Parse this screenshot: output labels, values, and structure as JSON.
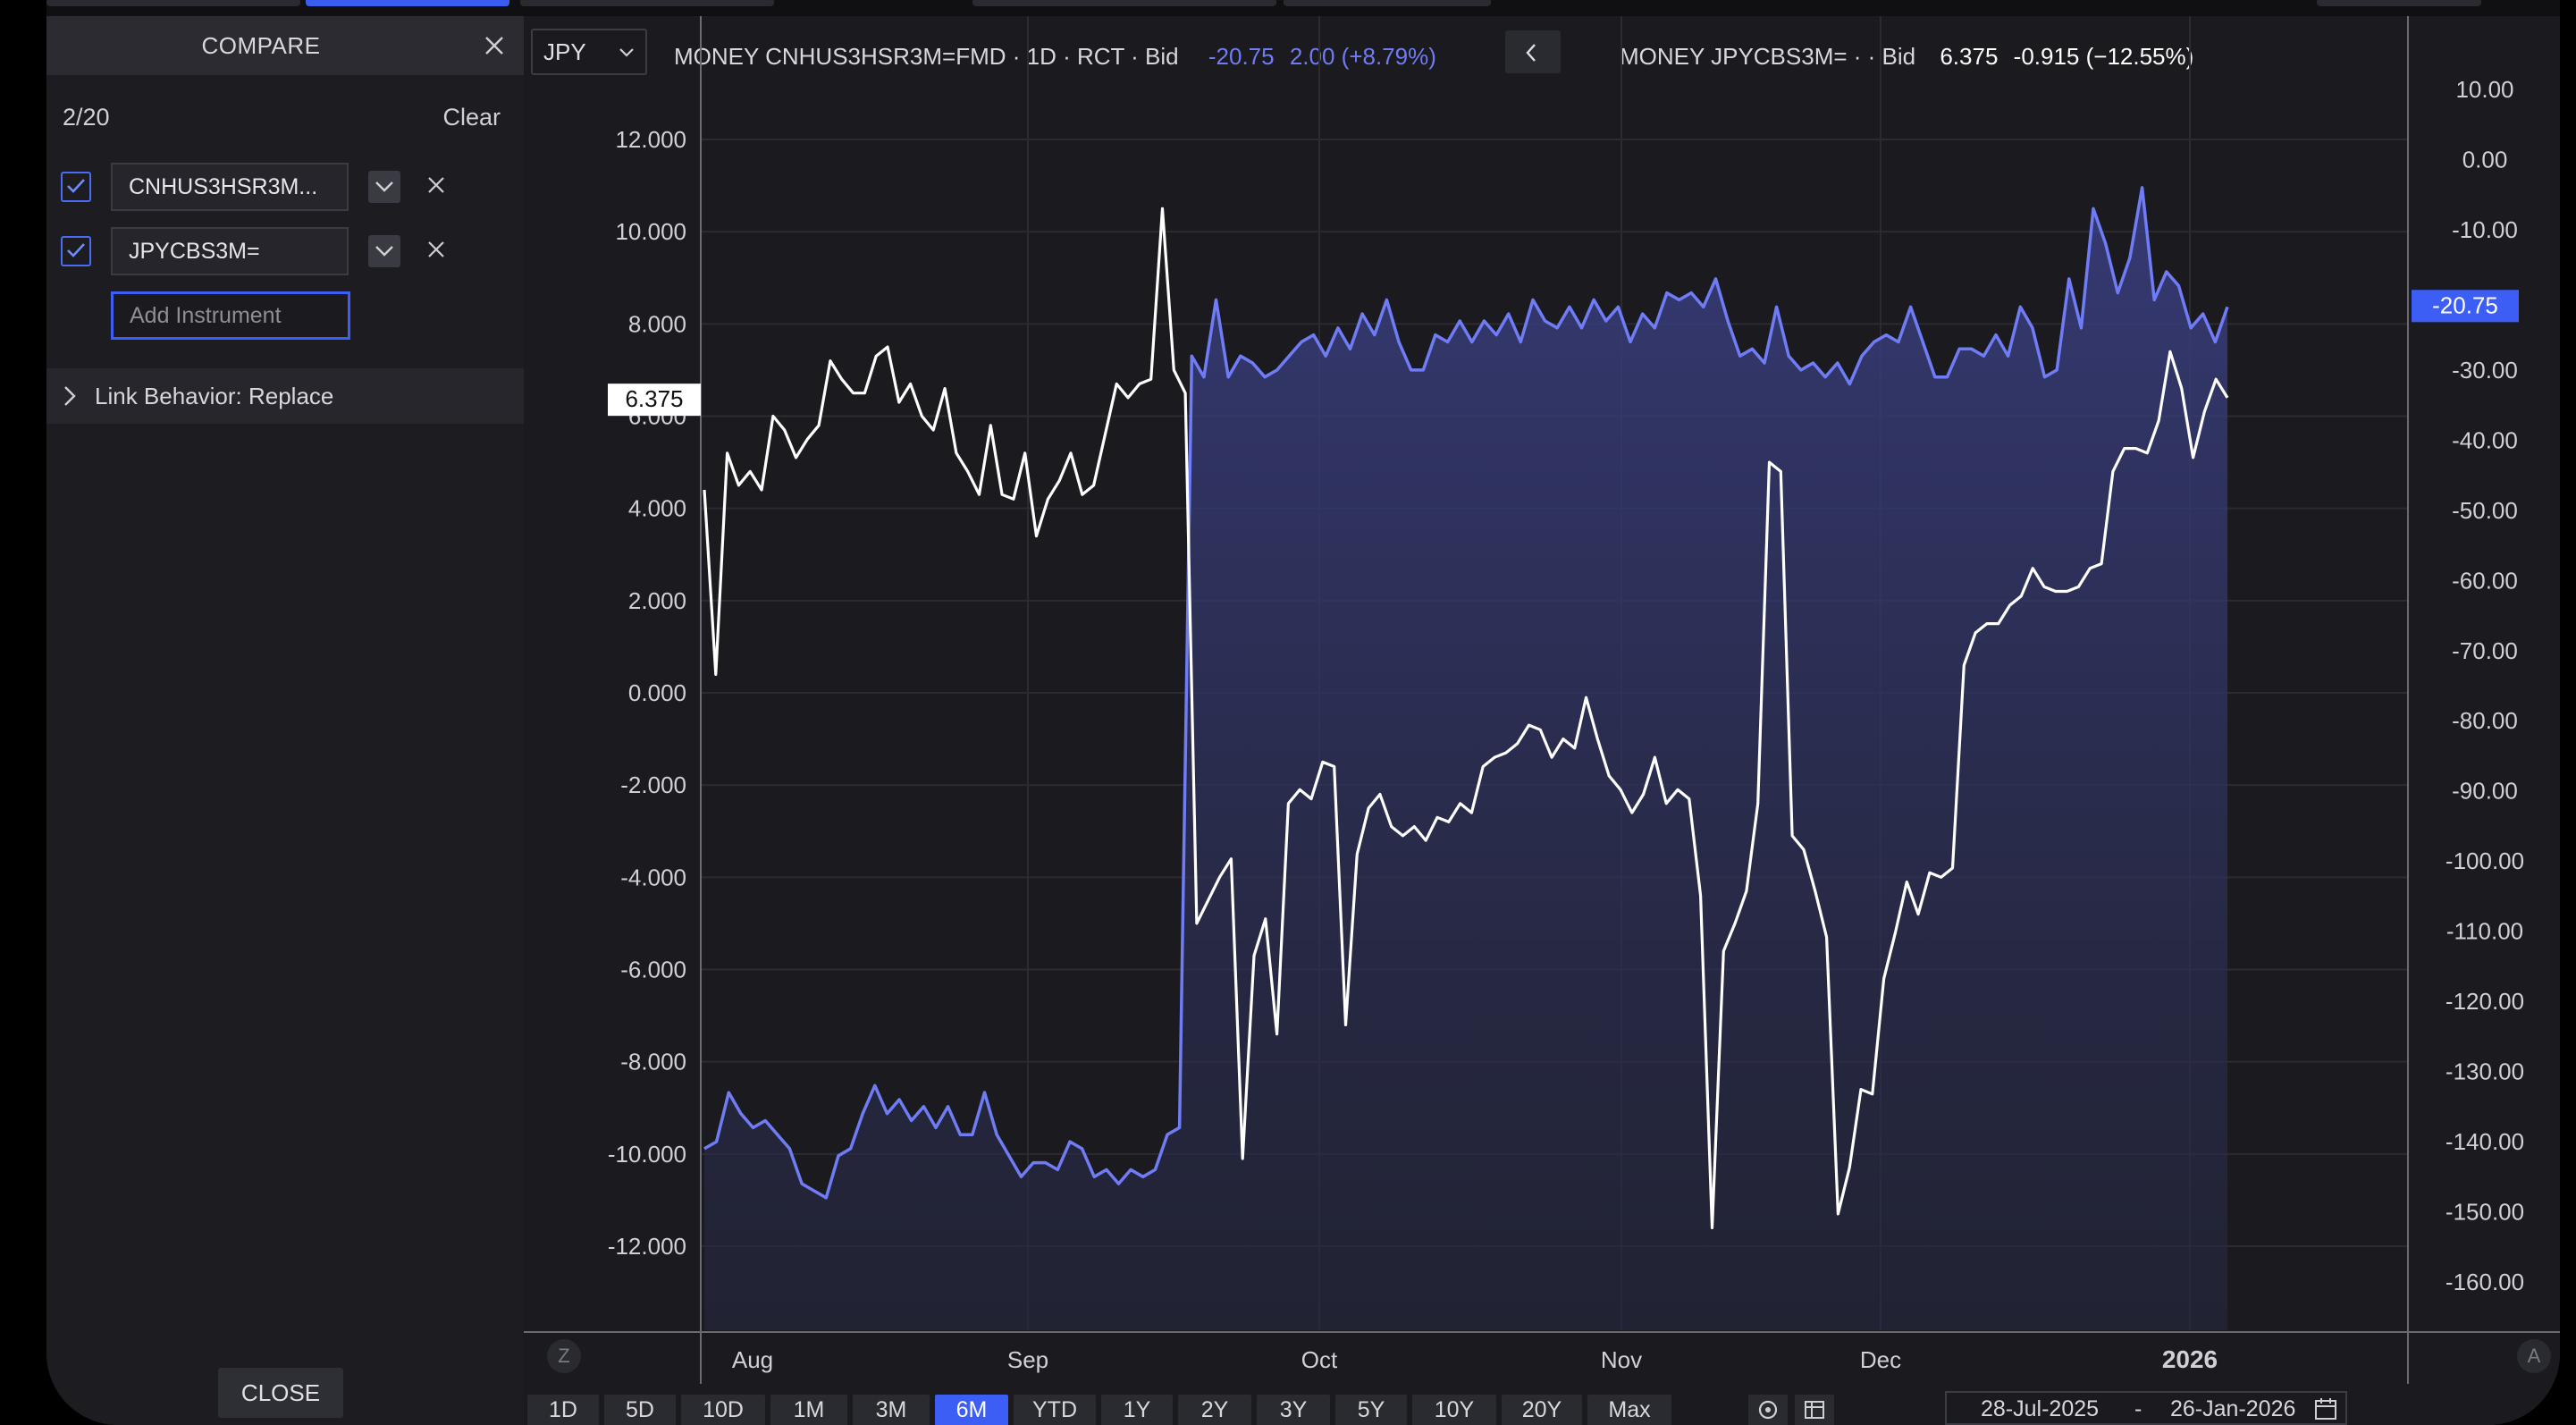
{
  "compare_panel": {
    "title": "COMPARE",
    "count": "2/20",
    "clear_label": "Clear",
    "instruments": [
      {
        "label": "CNHUS3HSR3M...",
        "checked": true
      },
      {
        "label": "JPYCBS3M=",
        "checked": true
      }
    ],
    "add_placeholder": "Add Instrument",
    "link_behavior": "Link Behavior: Replace",
    "close_label": "CLOSE"
  },
  "toolbar": {
    "currency": "JPY"
  },
  "legend": {
    "series1": {
      "prefix": "MONEY CNHUS3HSR3M=FMD · 1D · RCT · Bid",
      "value": "-20.75",
      "change": "2.00 (+8.79%)",
      "color": "#6f7cf5"
    },
    "series2": {
      "prefix": "MONEY JPYCBS3M= · · Bid",
      "value": "6.375",
      "change": "-0.915 (−12.55%)",
      "color": "#ffffff"
    }
  },
  "chart_data": {
    "type": "line",
    "x_axis": {
      "labels": [
        "Aug",
        "Sep",
        "Oct",
        "Nov",
        "Dec",
        "2026"
      ],
      "range": [
        "28-Jul-2025",
        "26-Jan-2026"
      ]
    },
    "y_left": {
      "ticks": [
        "12.000",
        "10.000",
        "8.000",
        "6.000",
        "4.000",
        "2.000",
        "0.000",
        "-2.000",
        "-4.000",
        "-6.000",
        "-8.000",
        "-10.000",
        "-12.000"
      ],
      "range": [
        -13.0,
        14.0
      ]
    },
    "y_right": {
      "ticks": [
        "10.00",
        "0.00",
        "-10.00",
        "-20.00",
        "-30.00",
        "-40.00",
        "-50.00",
        "-60.00",
        "-70.00",
        "-80.00",
        "-90.00",
        "-100.00",
        "-110.00",
        "-120.00",
        "-130.00",
        "-140.00",
        "-150.00",
        "-160.00"
      ],
      "range": [
        -162.0,
        14.0
      ]
    },
    "series": [
      {
        "name": "MONEY CNHUS3HSR3M=FMD",
        "axis": "right",
        "style": "area",
        "color": "#6f7cf5",
        "last_value": "-20.75",
        "values": [
          -141,
          -140,
          -133,
          -136,
          -138,
          -137,
          -139,
          -141,
          -146,
          -147,
          -148,
          -142,
          -141,
          -136,
          -132,
          -136,
          -134,
          -137,
          -135,
          -138,
          -135,
          -139,
          -139,
          -133,
          -139,
          -142,
          -145,
          -143,
          -143,
          -144,
          -140,
          -141,
          -145,
          -144,
          -146,
          -144,
          -145,
          -144,
          -139,
          -138,
          -28,
          -31,
          -20,
          -31,
          -28,
          -29,
          -31,
          -30,
          -28,
          -26,
          -25,
          -28,
          -24,
          -27,
          -22,
          -25,
          -20,
          -26,
          -30,
          -30,
          -25,
          -26,
          -23,
          -26,
          -23,
          -25,
          -22,
          -26,
          -20,
          -23,
          -24,
          -21,
          -24,
          -20,
          -23,
          -21,
          -26,
          -22,
          -24,
          -19,
          -20,
          -19,
          -21,
          -17,
          -23,
          -28,
          -27,
          -29,
          -21,
          -28,
          -30,
          -29,
          -31,
          -29,
          -32,
          -28,
          -26,
          -25,
          -26,
          -21,
          -26,
          -31,
          -31,
          -27,
          -27,
          -28,
          -25,
          -28,
          -21,
          -24,
          -31,
          -30,
          -17,
          -24,
          -7,
          -12,
          -19,
          -14,
          -4,
          -20,
          -16,
          -18,
          -24,
          -22,
          -26,
          -21
        ]
      },
      {
        "name": "MONEY JPYCBS3M=",
        "axis": "left",
        "style": "line",
        "color": "#ffffff",
        "last_value": "6.375",
        "values": [
          4.4,
          0.4,
          5.2,
          4.5,
          4.8,
          4.4,
          6.0,
          5.7,
          5.1,
          5.5,
          5.8,
          7.2,
          6.8,
          6.5,
          6.5,
          7.3,
          7.5,
          6.3,
          6.7,
          6.0,
          5.7,
          6.6,
          5.2,
          4.8,
          4.3,
          5.8,
          4.3,
          4.2,
          5.2,
          3.4,
          4.2,
          4.6,
          5.2,
          4.3,
          4.5,
          5.6,
          6.7,
          6.4,
          6.7,
          6.8,
          10.5,
          7.0,
          6.5,
          -5.0,
          -4.5,
          -4.0,
          -3.6,
          -10.1,
          -5.7,
          -4.9,
          -7.4,
          -2.4,
          -2.1,
          -2.3,
          -1.5,
          -1.6,
          -7.2,
          -3.5,
          -2.5,
          -2.2,
          -2.9,
          -3.1,
          -2.9,
          -3.2,
          -2.7,
          -2.8,
          -2.4,
          -2.6,
          -1.6,
          -1.4,
          -1.3,
          -1.1,
          -0.7,
          -0.8,
          -1.4,
          -1.0,
          -1.2,
          -0.1,
          -1.0,
          -1.8,
          -2.1,
          -2.6,
          -2.2,
          -1.4,
          -2.4,
          -2.1,
          -2.3,
          -4.4,
          -11.6,
          -5.6,
          -5.0,
          -4.3,
          -2.4,
          5.0,
          4.8,
          -3.1,
          -3.4,
          -4.3,
          -5.3,
          -11.3,
          -10.3,
          -8.6,
          -8.7,
          -6.2,
          -5.2,
          -4.1,
          -4.8,
          -3.9,
          -4.0,
          -3.8,
          0.6,
          1.3,
          1.5,
          1.5,
          1.9,
          2.1,
          2.7,
          2.3,
          2.2,
          2.2,
          2.3,
          2.7,
          2.8,
          4.8,
          5.3,
          5.3,
          5.2,
          5.9,
          7.4,
          6.6,
          5.1,
          6.1,
          6.8,
          6.4
        ]
      }
    ]
  },
  "periods": [
    "1D",
    "5D",
    "10D",
    "1M",
    "3M",
    "6M",
    "YTD",
    "1Y",
    "2Y",
    "3Y",
    "5Y",
    "10Y",
    "20Y",
    "Max"
  ],
  "active_period": "6M",
  "date_range": {
    "start": "28-Jul-2025",
    "separator": "-",
    "end": "26-Jan-2026"
  },
  "corner_buttons": {
    "left": "Z",
    "right": "A"
  },
  "icons": [
    "check-icon",
    "chevron-down-icon",
    "close-icon",
    "chevron-right-icon",
    "chevron-left-icon",
    "gear-icon",
    "table-icon",
    "calendar-icon"
  ]
}
